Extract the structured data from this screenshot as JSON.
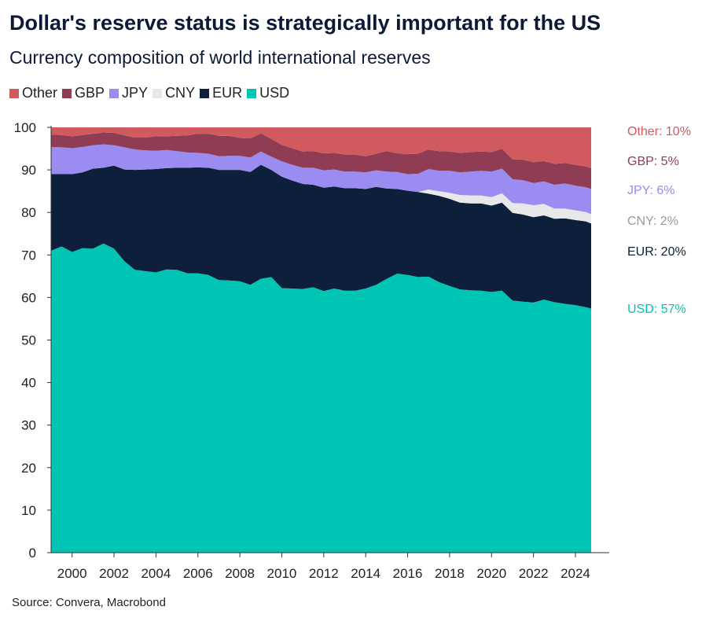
{
  "chart_data": {
    "type": "area",
    "title": "Dollar's reserve status is strategically important for the US",
    "subtitle": "Currency composition of world international reserves",
    "source": "Source: Convera, Macrobond",
    "ylim": [
      0,
      100
    ],
    "xlim": [
      1999,
      2024.75
    ],
    "yticks": [
      0,
      10,
      20,
      30,
      40,
      50,
      60,
      70,
      80,
      90,
      100
    ],
    "xticks": [
      2000,
      2002,
      2004,
      2006,
      2008,
      2010,
      2012,
      2014,
      2016,
      2018,
      2020,
      2022,
      2024
    ],
    "stacked": true,
    "legend_position": "top-left",
    "legend": [
      {
        "name": "Other",
        "color": "#d05a5e"
      },
      {
        "name": "GBP",
        "color": "#903c55"
      },
      {
        "name": "JPY",
        "color": "#9b8cf2"
      },
      {
        "name": "CNY",
        "color": "#e8e8e8"
      },
      {
        "name": "EUR",
        "color": "#0d1f3a"
      },
      {
        "name": "USD",
        "color": "#00c5b4"
      }
    ],
    "end_labels": [
      {
        "text": "Other: 10%",
        "color": "#d05a5e"
      },
      {
        "text": "GBP: 5%",
        "color": "#903c55"
      },
      {
        "text": "JPY: 6%",
        "color": "#9b8cf2"
      },
      {
        "text": "CNY: 2%",
        "color": "#999999"
      },
      {
        "text": "EUR: 20%",
        "color": "#0d1f3a"
      },
      {
        "text": "USD: 57%",
        "color": "#00c5b4"
      }
    ],
    "stack_order": [
      "USD",
      "EUR",
      "CNY",
      "JPY",
      "GBP",
      "Other"
    ],
    "x": [
      1999,
      1999.5,
      2000,
      2000.5,
      2001,
      2001.5,
      2002,
      2002.5,
      2003,
      2003.5,
      2004,
      2004.5,
      2005,
      2005.5,
      2006,
      2006.5,
      2007,
      2007.5,
      2008,
      2008.5,
      2009,
      2009.5,
      2010,
      2010.5,
      2011,
      2011.5,
      2012,
      2012.5,
      2013,
      2013.5,
      2014,
      2014.5,
      2015,
      2015.5,
      2016,
      2016.5,
      2017,
      2017.5,
      2018,
      2018.5,
      2019,
      2019.5,
      2020,
      2020.5,
      2021,
      2021.5,
      2022,
      2022.5,
      2023,
      2023.5,
      2024,
      2024.5,
      2024.75
    ],
    "series": [
      {
        "name": "USD",
        "values": [
          71.0,
          72.0,
          70.7,
          71.6,
          71.5,
          72.7,
          71.5,
          68.5,
          66.5,
          66.2,
          65.9,
          66.6,
          66.5,
          65.7,
          65.7,
          65.3,
          64.1,
          64.0,
          63.8,
          63.0,
          64.4,
          64.8,
          62.2,
          62.1,
          62.0,
          62.4,
          61.5,
          62.1,
          61.6,
          61.6,
          62.1,
          63.0,
          64.4,
          65.6,
          65.3,
          64.8,
          64.9,
          63.6,
          62.7,
          61.9,
          61.7,
          61.6,
          61.3,
          61.6,
          59.3,
          59.0,
          58.8,
          59.5,
          58.9,
          58.5,
          58.2,
          57.7,
          57.4
        ]
      },
      {
        "name": "EUR",
        "values": [
          18.0,
          17.0,
          18.3,
          17.8,
          18.8,
          17.8,
          19.5,
          21.6,
          23.5,
          23.9,
          24.3,
          23.8,
          24.0,
          24.8,
          24.9,
          25.2,
          25.9,
          26.0,
          26.2,
          26.5,
          26.8,
          25.2,
          26.2,
          25.4,
          24.7,
          24.1,
          24.3,
          24.0,
          24.1,
          24.1,
          23.4,
          23.0,
          21.2,
          19.9,
          19.8,
          20.0,
          19.5,
          20.3,
          20.5,
          20.4,
          20.4,
          20.5,
          20.3,
          20.7,
          20.6,
          20.5,
          20.1,
          19.8,
          19.6,
          20.1,
          20.0,
          20.2,
          20.0
        ]
      },
      {
        "name": "CNY",
        "values": [
          0,
          0,
          0,
          0,
          0,
          0,
          0,
          0,
          0,
          0,
          0,
          0,
          0,
          0,
          0,
          0,
          0,
          0,
          0,
          0,
          0,
          0,
          0,
          0,
          0,
          0,
          0,
          0,
          0,
          0,
          0,
          0,
          0,
          0,
          0,
          0,
          1.0,
          1.1,
          1.4,
          1.8,
          1.9,
          1.9,
          2.0,
          2.2,
          2.3,
          2.6,
          2.8,
          2.7,
          2.4,
          2.3,
          2.3,
          2.2,
          2.2
        ]
      },
      {
        "name": "JPY",
        "values": [
          6.4,
          6.3,
          6.1,
          6.0,
          5.5,
          5.5,
          4.8,
          5.2,
          4.8,
          4.5,
          4.3,
          4.3,
          3.9,
          3.6,
          3.4,
          3.3,
          3.2,
          3.3,
          3.3,
          3.4,
          3.1,
          3.1,
          3.6,
          3.7,
          3.8,
          4.0,
          4.1,
          4.0,
          3.9,
          3.9,
          3.9,
          3.9,
          4.0,
          4.0,
          3.9,
          4.3,
          4.8,
          4.8,
          5.2,
          5.3,
          5.6,
          5.8,
          6.0,
          5.8,
          5.6,
          5.5,
          5.2,
          5.3,
          5.6,
          5.9,
          5.8,
          5.8,
          5.9
        ]
      },
      {
        "name": "GBP",
        "values": [
          2.9,
          2.9,
          2.8,
          2.8,
          2.7,
          2.8,
          2.9,
          2.8,
          2.8,
          3.0,
          3.4,
          3.2,
          3.6,
          4.0,
          4.5,
          4.7,
          4.8,
          4.7,
          4.2,
          4.5,
          4.3,
          4.2,
          3.9,
          3.9,
          3.8,
          3.9,
          4.0,
          3.9,
          4.0,
          4.0,
          3.8,
          3.9,
          4.8,
          4.4,
          4.7,
          4.7,
          4.6,
          4.6,
          4.5,
          4.6,
          4.6,
          4.5,
          4.6,
          4.7,
          4.7,
          4.8,
          4.9,
          4.8,
          4.9,
          4.8,
          4.9,
          4.9,
          4.9
        ]
      },
      {
        "name": "Other",
        "values": [
          1.7,
          1.8,
          2.1,
          1.8,
          1.5,
          1.2,
          1.3,
          1.9,
          2.4,
          2.4,
          2.1,
          2.1,
          2.0,
          1.9,
          1.5,
          1.5,
          2.0,
          2.0,
          2.5,
          2.6,
          1.4,
          2.7,
          4.1,
          4.9,
          5.7,
          5.6,
          6.1,
          6.0,
          6.4,
          6.4,
          6.8,
          6.2,
          5.6,
          6.1,
          6.3,
          6.2,
          5.2,
          5.6,
          5.7,
          6.0,
          5.8,
          5.7,
          5.8,
          5.0,
          7.5,
          7.6,
          8.2,
          7.9,
          8.6,
          8.4,
          8.8,
          9.2,
          9.6
        ]
      }
    ]
  }
}
